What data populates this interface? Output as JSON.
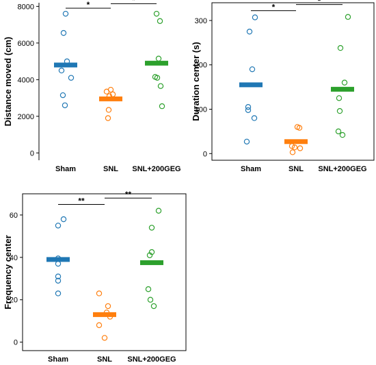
{
  "chart_data": [
    {
      "type": "scatter",
      "ylabel": "Distance moved (cm)",
      "categories": [
        "Sham",
        "SNL",
        "SNL+200GEG"
      ],
      "yticks": [
        0,
        2000,
        4000,
        6000,
        8000
      ],
      "ylim": [
        -400,
        8200
      ],
      "frame": false,
      "colors": [
        "#1f77b4",
        "#ff7f0e",
        "#2ca02c"
      ],
      "means": [
        4800,
        2950,
        4900
      ],
      "points": [
        [
          7600,
          6550,
          5000,
          4500,
          4100,
          3150,
          2600
        ],
        [
          3450,
          3350,
          3200,
          3100,
          2350,
          1900
        ],
        [
          7600,
          7200,
          5150,
          4150,
          4100,
          3650,
          2550
        ]
      ],
      "significance": [
        {
          "from": 0,
          "to": 1,
          "label": "*",
          "y": 7900
        },
        {
          "from": 1,
          "to": 2,
          "label": "*",
          "y": 8150
        }
      ]
    },
    {
      "type": "scatter",
      "ylabel": "Duration center (s)",
      "categories": [
        "Sham",
        "SNL",
        "SNL+200GEG"
      ],
      "yticks": [
        0,
        100,
        200,
        300
      ],
      "ylim": [
        -15,
        340
      ],
      "frame": true,
      "colors": [
        "#1f77b4",
        "#ff7f0e",
        "#2ca02c"
      ],
      "means": [
        155,
        27,
        145
      ],
      "points": [
        [
          307,
          275,
          190,
          105,
          98,
          80,
          27
        ],
        [
          60,
          58,
          17,
          14,
          12,
          3
        ],
        [
          308,
          238,
          160,
          125,
          96,
          50,
          42
        ]
      ],
      "significance": [
        {
          "from": 0,
          "to": 1,
          "label": "*",
          "y": 322
        },
        {
          "from": 1,
          "to": 2,
          "label": "*",
          "y": 336
        }
      ]
    },
    {
      "type": "scatter",
      "ylabel": "Frequency center",
      "categories": [
        "Sham",
        "SNL",
        "SNL+200GEG"
      ],
      "yticks": [
        0,
        20,
        40,
        60
      ],
      "ylim": [
        -4,
        70
      ],
      "frame": true,
      "colors": [
        "#1f77b4",
        "#ff7f0e",
        "#2ca02c"
      ],
      "means": [
        39,
        13,
        37.5
      ],
      "points": [
        [
          58,
          55,
          39.5,
          37,
          31,
          29,
          23
        ],
        [
          23,
          17,
          14,
          12,
          8,
          2
        ],
        [
          62,
          54,
          42.5,
          41,
          25,
          20,
          17
        ]
      ],
      "significance": [
        {
          "from": 0,
          "to": 1,
          "label": "**",
          "y": 65
        },
        {
          "from": 1,
          "to": 2,
          "label": "**",
          "y": 68
        }
      ]
    }
  ]
}
